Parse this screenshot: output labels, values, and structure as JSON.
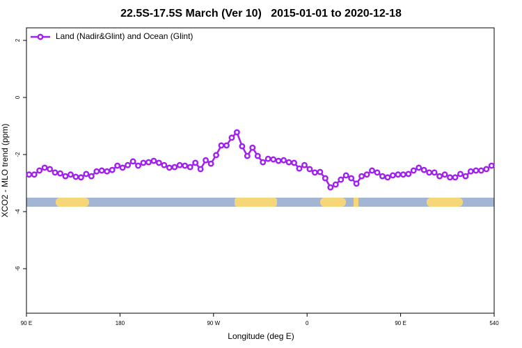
{
  "chart_data": {
    "type": "line",
    "title": "22.5S-17.5S March (Ver 10)   2015-01-01 to 2020-12-18",
    "x_label": "Longitude (deg E)",
    "y_label": "XCO2 - MLO trend (ppm)",
    "xlim": [
      90,
      540
    ],
    "ylim": [
      -7.56,
      2.44
    ],
    "xticks": [
      {
        "value": 90,
        "label": "90 E"
      },
      180,
      {
        "value": 270,
        "label": "90 W"
      },
      {
        "value": 360,
        "label": "0"
      },
      {
        "value": 450,
        "label": "90 E"
      },
      540
    ],
    "yticks": [
      -6,
      -4,
      -2,
      0,
      2
    ],
    "legend": "topleft",
    "x": [
      92.5,
      97.5,
      102.5,
      107.5,
      112.5,
      117.5,
      122.5,
      127.5,
      132.5,
      137.5,
      142.5,
      147.5,
      152.5,
      157.5,
      162.5,
      167.5,
      172.5,
      177.5,
      182.5,
      187.5,
      192.5,
      197.5,
      202.5,
      207.5,
      212.5,
      217.5,
      222.5,
      227.5,
      232.5,
      237.5,
      242.5,
      247.5,
      252.5,
      257.5,
      262.5,
      267.5,
      272.5,
      277.5,
      282.5,
      287.5,
      292.5,
      297.5,
      302.5,
      307.5,
      312.5,
      317.5,
      322.5,
      327.5,
      332.5,
      337.5,
      342.5,
      347.5,
      352.5,
      357.5,
      362.5,
      367.5,
      372.5,
      377.5,
      382.5,
      387.5,
      392.5,
      397.5,
      402.5,
      407.5,
      412.5,
      417.5,
      422.5,
      427.5,
      432.5,
      437.5,
      442.5,
      447.5,
      452.5,
      457.5,
      462.5,
      467.5,
      472.5,
      477.5,
      482.5,
      487.5,
      492.5,
      497.5,
      502.5,
      507.5,
      512.5,
      517.5,
      522.5,
      527.5,
      532.5,
      537.5
    ],
    "series": [
      {
        "name": "Land (Nadir&Glint) and Ocean (Glint)",
        "color": "#a020f0",
        "values": [
          -2.7,
          -2.7,
          -2.56,
          -2.46,
          -2.51,
          -2.63,
          -2.66,
          -2.76,
          -2.7,
          -2.78,
          -2.8,
          -2.68,
          -2.76,
          -2.59,
          -2.56,
          -2.59,
          -2.54,
          -2.39,
          -2.46,
          -2.37,
          -2.24,
          -2.39,
          -2.29,
          -2.27,
          -2.22,
          -2.29,
          -2.37,
          -2.46,
          -2.44,
          -2.37,
          -2.39,
          -2.44,
          -2.29,
          -2.51,
          -2.2,
          -2.32,
          -2.02,
          -1.68,
          -1.68,
          -1.41,
          -1.22,
          -1.71,
          -2.05,
          -1.76,
          -2.05,
          -2.27,
          -2.15,
          -2.17,
          -2.22,
          -2.2,
          -2.27,
          -2.29,
          -2.49,
          -2.37,
          -2.51,
          -2.63,
          -2.61,
          -2.83,
          -3.15,
          -3.05,
          -2.88,
          -2.73,
          -2.83,
          -3.02,
          -2.76,
          -2.7,
          -2.56,
          -2.63,
          -2.76,
          -2.8,
          -2.73,
          -2.7,
          -2.7,
          -2.68,
          -2.56,
          -2.46,
          -2.54,
          -2.63,
          -2.63,
          -2.76,
          -2.7,
          -2.8,
          -2.8,
          -2.68,
          -2.76,
          -2.59,
          -2.56,
          -2.56,
          -2.51,
          -2.39
        ]
      }
    ]
  }
}
